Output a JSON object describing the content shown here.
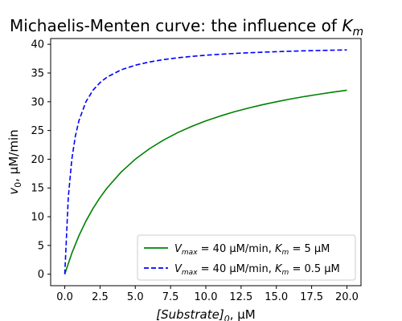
{
  "chart_data": {
    "type": "line",
    "title": {
      "prefix": "Michaelis-Menten curve: the influence of ",
      "symbol": "K",
      "subscript": "m"
    },
    "xlabel": {
      "symbol": "[Substrate]",
      "subscript": "0",
      "unit": ", μM"
    },
    "ylabel": {
      "symbol": "v",
      "subscript": "0",
      "unit": ", μM/min"
    },
    "xlim": [
      -1.0,
      21.0
    ],
    "ylim": [
      -2.0,
      41.0
    ],
    "xticks": [
      0,
      2.5,
      5,
      7.5,
      10,
      12.5,
      15,
      17.5,
      20
    ],
    "xtick_labels": [
      "0.0",
      "2.5",
      "5.0",
      "7.5",
      "10.0",
      "12.5",
      "15.0",
      "17.5",
      "20.0"
    ],
    "yticks": [
      0,
      5,
      10,
      15,
      20,
      25,
      30,
      35,
      40
    ],
    "ytick_labels": [
      "0",
      "5",
      "10",
      "15",
      "20",
      "25",
      "30",
      "35",
      "40"
    ],
    "grid": false,
    "legend_position": "lower-right",
    "series": [
      {
        "name": "Vmax = 40 μM/min, Km = 5 μM",
        "legend": {
          "v_sym": "V",
          "v_sub": "max",
          "v_val": " = 40 μM/min, ",
          "k_sym": "K",
          "k_sub": "m",
          "k_val": " = 5 μM"
        },
        "color": "#008000",
        "style": "solid",
        "x": [
          0,
          0.5,
          1,
          1.5,
          2,
          2.5,
          3,
          4,
          5,
          6,
          7,
          8,
          9,
          10,
          11,
          12,
          13,
          14,
          15,
          16,
          17,
          18,
          19,
          20
        ],
        "y": [
          0,
          3.64,
          6.67,
          9.23,
          11.43,
          13.33,
          15.0,
          17.78,
          20.0,
          21.82,
          23.33,
          24.62,
          25.71,
          26.67,
          27.5,
          28.24,
          28.89,
          29.47,
          30.0,
          30.48,
          30.91,
          31.3,
          31.67,
          32.0
        ]
      },
      {
        "name": "Vmax = 40 μM/min, Km = 0.5 μM",
        "legend": {
          "v_sym": "V",
          "v_sub": "max",
          "v_val": " = 40 μM/min, ",
          "k_sym": "K",
          "k_sub": "m",
          "k_val": " = 0.5 μM"
        },
        "color": "#0000ff",
        "style": "dashed",
        "x": [
          0,
          0.25,
          0.5,
          0.75,
          1,
          1.5,
          2,
          2.5,
          3,
          4,
          5,
          6,
          7,
          8,
          9,
          10,
          11,
          12,
          13,
          14,
          15,
          16,
          17,
          18,
          19,
          20
        ],
        "y": [
          0,
          13.33,
          20.0,
          24.0,
          26.67,
          30.0,
          32.0,
          33.33,
          34.29,
          35.56,
          36.36,
          36.92,
          37.33,
          37.65,
          37.89,
          38.1,
          38.26,
          38.4,
          38.52,
          38.62,
          38.71,
          38.79,
          38.86,
          38.92,
          38.97,
          39.02
        ]
      }
    ]
  }
}
